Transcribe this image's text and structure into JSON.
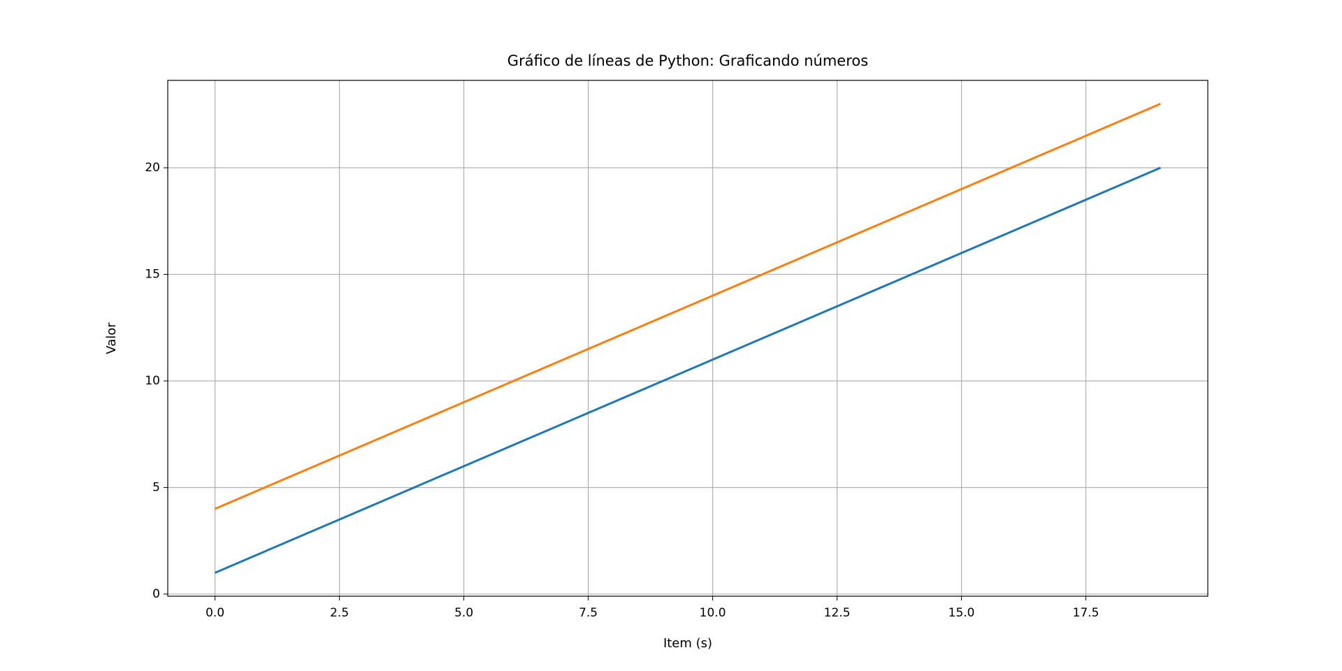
{
  "chart_data": {
    "type": "line",
    "title": "Gráfico de líneas de Python: Graficando números",
    "x_label": "Item (s)",
    "y_label": "Valor",
    "x": [
      0,
      1,
      2,
      3,
      4,
      5,
      6,
      7,
      8,
      9,
      10,
      11,
      12,
      13,
      14,
      15,
      16,
      17,
      18,
      19
    ],
    "series": [
      {
        "color": "#1f77b4",
        "values": [
          1,
          2,
          3,
          4,
          5,
          6,
          7,
          8,
          9,
          10,
          11,
          12,
          13,
          14,
          15,
          16,
          17,
          18,
          19,
          20
        ]
      },
      {
        "color": "#ff7f0e",
        "values": [
          4,
          5,
          6,
          7,
          8,
          9,
          10,
          11,
          12,
          13,
          14,
          15,
          16,
          17,
          18,
          19,
          20,
          21,
          22,
          23
        ]
      }
    ],
    "xlim": [
      -0.95,
      19.95
    ],
    "ylim": [
      -0.1,
      24.1
    ],
    "xticks": [
      {
        "value": 0,
        "label": "0.0"
      },
      {
        "value": 2.5,
        "label": "2.5"
      },
      {
        "value": 5,
        "label": "5.0"
      },
      {
        "value": 7.5,
        "label": "7.5"
      },
      {
        "value": 10,
        "label": "10.0"
      },
      {
        "value": 12.5,
        "label": "12.5"
      },
      {
        "value": 15,
        "label": "15.0"
      },
      {
        "value": 17.5,
        "label": "17.5"
      }
    ],
    "yticks": [
      0,
      5,
      10,
      15,
      20
    ],
    "grid": true
  }
}
